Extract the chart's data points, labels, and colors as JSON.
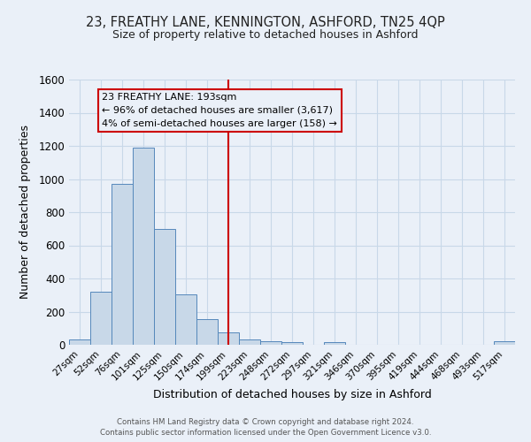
{
  "title_line1": "23, FREATHY LANE, KENNINGTON, ASHFORD, TN25 4QP",
  "title_line2": "Size of property relative to detached houses in Ashford",
  "xlabel": "Distribution of detached houses by size in Ashford",
  "ylabel": "Number of detached properties",
  "bin_labels": [
    "27sqm",
    "52sqm",
    "76sqm",
    "101sqm",
    "125sqm",
    "150sqm",
    "174sqm",
    "199sqm",
    "223sqm",
    "248sqm",
    "272sqm",
    "297sqm",
    "321sqm",
    "346sqm",
    "370sqm",
    "395sqm",
    "419sqm",
    "444sqm",
    "468sqm",
    "493sqm",
    "517sqm"
  ],
  "bar_heights": [
    30,
    320,
    970,
    1190,
    700,
    305,
    155,
    75,
    30,
    20,
    15,
    0,
    15,
    0,
    0,
    0,
    0,
    0,
    0,
    0,
    20
  ],
  "bar_color": "#c8d8e8",
  "bar_edge_color": "#5588bb",
  "vline_color": "#cc0000",
  "annotation_title": "23 FREATHY LANE: 193sqm",
  "annotation_line1": "← 96% of detached houses are smaller (3,617)",
  "annotation_line2": "4% of semi-detached houses are larger (158) →",
  "annotation_box_color": "#cc0000",
  "ylim": [
    0,
    1600
  ],
  "yticks": [
    0,
    200,
    400,
    600,
    800,
    1000,
    1200,
    1400,
    1600
  ],
  "grid_color": "#c8d8e8",
  "bg_color": "#eaf0f8",
  "footer_line1": "Contains HM Land Registry data © Crown copyright and database right 2024.",
  "footer_line2": "Contains public sector information licensed under the Open Government Licence v3.0."
}
